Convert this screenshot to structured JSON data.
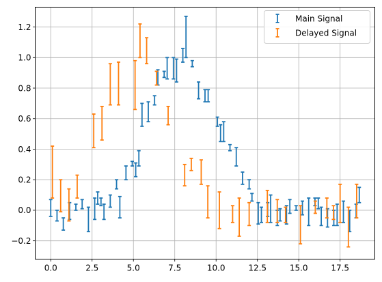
{
  "chart_data": {
    "type": "errorbar",
    "title": "",
    "xlabel": "",
    "ylabel": "",
    "xlim": [
      -0.94,
      19.6
    ],
    "ylim": [
      -0.32,
      1.33
    ],
    "grid": true,
    "legend_position": "top-right",
    "x_ticks": [
      0.0,
      2.5,
      5.0,
      7.5,
      10.0,
      12.5,
      15.0,
      17.5
    ],
    "x_tick_labels": [
      "0.0",
      "2.5",
      "5.0",
      "7.5",
      "10.0",
      "12.5",
      "15.0",
      "17.5"
    ],
    "y_ticks": [
      -0.2,
      0.0,
      0.2,
      0.4,
      0.6,
      0.8,
      1.0,
      1.2
    ],
    "y_tick_labels": [
      "−0.2",
      "0.0",
      "0.2",
      "0.4",
      "0.6",
      "0.8",
      "1.0",
      "1.2"
    ],
    "series": [
      {
        "name": "Main Signal",
        "color": "#1f77b4",
        "points": [
          {
            "x": 0.0,
            "lo": -0.04,
            "hi": 0.07
          },
          {
            "x": 0.38,
            "lo": -0.07,
            "hi": 0.0
          },
          {
            "x": 0.76,
            "lo": -0.13,
            "hi": -0.05
          },
          {
            "x": 1.14,
            "lo": -0.06,
            "hi": 0.05
          },
          {
            "x": 1.52,
            "lo": 0.0,
            "hi": 0.04
          },
          {
            "x": 1.9,
            "lo": 0.01,
            "hi": 0.07
          },
          {
            "x": 2.28,
            "lo": -0.14,
            "hi": 0.02
          },
          {
            "x": 2.66,
            "lo": -0.06,
            "hi": 0.08
          },
          {
            "x": 2.84,
            "lo": 0.04,
            "hi": 0.12
          },
          {
            "x": 3.04,
            "lo": 0.03,
            "hi": 0.08
          },
          {
            "x": 3.22,
            "lo": -0.06,
            "hi": 0.04
          },
          {
            "x": 3.6,
            "lo": 0.02,
            "hi": 0.1
          },
          {
            "x": 3.98,
            "lo": 0.14,
            "hi": 0.2
          },
          {
            "x": 4.18,
            "lo": -0.05,
            "hi": 0.09
          },
          {
            "x": 4.55,
            "lo": 0.2,
            "hi": 0.29
          },
          {
            "x": 4.93,
            "lo": 0.29,
            "hi": 0.32
          },
          {
            "x": 5.14,
            "lo": 0.22,
            "hi": 0.31
          },
          {
            "x": 5.33,
            "lo": 0.29,
            "hi": 0.39
          },
          {
            "x": 5.52,
            "lo": 0.55,
            "hi": 0.7
          },
          {
            "x": 5.9,
            "lo": 0.58,
            "hi": 0.71
          },
          {
            "x": 6.28,
            "lo": 0.69,
            "hi": 0.75
          },
          {
            "x": 6.48,
            "lo": 0.82,
            "hi": 0.92
          },
          {
            "x": 6.86,
            "lo": 0.87,
            "hi": 0.91
          },
          {
            "x": 7.04,
            "lo": 0.86,
            "hi": 1.0
          },
          {
            "x": 7.42,
            "lo": 0.86,
            "hi": 1.0
          },
          {
            "x": 7.61,
            "lo": 0.84,
            "hi": 0.99
          },
          {
            "x": 7.99,
            "lo": 0.97,
            "hi": 1.06
          },
          {
            "x": 8.18,
            "lo": 1.0,
            "hi": 1.27
          },
          {
            "x": 8.56,
            "lo": 0.94,
            "hi": 0.98
          },
          {
            "x": 8.94,
            "lo": 0.73,
            "hi": 0.84
          },
          {
            "x": 9.33,
            "lo": 0.71,
            "hi": 0.79
          },
          {
            "x": 9.52,
            "lo": 0.71,
            "hi": 0.79
          },
          {
            "x": 10.08,
            "lo": 0.55,
            "hi": 0.61
          },
          {
            "x": 10.27,
            "lo": 0.45,
            "hi": 0.56
          },
          {
            "x": 10.46,
            "lo": 0.45,
            "hi": 0.58
          },
          {
            "x": 10.84,
            "lo": 0.39,
            "hi": 0.43
          },
          {
            "x": 11.22,
            "lo": 0.29,
            "hi": 0.41
          },
          {
            "x": 11.6,
            "lo": 0.17,
            "hi": 0.25
          },
          {
            "x": 12.0,
            "lo": 0.14,
            "hi": 0.2
          },
          {
            "x": 12.17,
            "lo": 0.06,
            "hi": 0.11
          },
          {
            "x": 12.55,
            "lo": -0.09,
            "hi": 0.05
          },
          {
            "x": 12.74,
            "lo": -0.08,
            "hi": 0.02
          },
          {
            "x": 13.12,
            "lo": -0.04,
            "hi": 0.05
          },
          {
            "x": 13.3,
            "lo": -0.08,
            "hi": 0.1
          },
          {
            "x": 13.7,
            "lo": -0.1,
            "hi": 0.0
          },
          {
            "x": 13.87,
            "lo": -0.07,
            "hi": 0.01
          },
          {
            "x": 14.26,
            "lo": -0.09,
            "hi": 0.03
          },
          {
            "x": 14.46,
            "lo": -0.02,
            "hi": 0.07
          },
          {
            "x": 14.84,
            "lo": 0.0,
            "hi": 0.03
          },
          {
            "x": 15.22,
            "lo": -0.03,
            "hi": 0.06
          },
          {
            "x": 15.6,
            "lo": -0.1,
            "hi": 0.08
          },
          {
            "x": 15.98,
            "lo": 0.03,
            "hi": 0.08
          },
          {
            "x": 16.18,
            "lo": 0.01,
            "hi": 0.08
          },
          {
            "x": 16.36,
            "lo": -0.1,
            "hi": 0.02
          },
          {
            "x": 16.74,
            "lo": -0.11,
            "hi": 0.01
          },
          {
            "x": 17.12,
            "lo": -0.1,
            "hi": 0.0
          },
          {
            "x": 17.32,
            "lo": -0.1,
            "hi": 0.04
          },
          {
            "x": 17.7,
            "lo": -0.08,
            "hi": 0.06
          },
          {
            "x": 18.08,
            "lo": -0.14,
            "hi": 0.0
          },
          {
            "x": 18.47,
            "lo": -0.05,
            "hi": 0.04
          },
          {
            "x": 18.66,
            "lo": 0.05,
            "hi": 0.15
          }
        ]
      },
      {
        "name": "Delayed Signal",
        "color": "#ff7f0e",
        "points": [
          {
            "x": 0.1,
            "lo": 0.08,
            "hi": 0.42
          },
          {
            "x": 0.6,
            "lo": -0.01,
            "hi": 0.2
          },
          {
            "x": 1.1,
            "lo": -0.07,
            "hi": 0.14
          },
          {
            "x": 1.6,
            "lo": 0.08,
            "hi": 0.23
          },
          {
            "x": 2.6,
            "lo": 0.41,
            "hi": 0.63
          },
          {
            "x": 3.1,
            "lo": 0.46,
            "hi": 0.68
          },
          {
            "x": 3.6,
            "lo": 0.69,
            "hi": 0.96
          },
          {
            "x": 4.1,
            "lo": 0.69,
            "hi": 0.97
          },
          {
            "x": 5.1,
            "lo": 0.66,
            "hi": 0.98
          },
          {
            "x": 5.4,
            "lo": 1.0,
            "hi": 1.22
          },
          {
            "x": 5.8,
            "lo": 0.96,
            "hi": 1.13
          },
          {
            "x": 6.4,
            "lo": 0.82,
            "hi": 0.91
          },
          {
            "x": 7.1,
            "lo": 0.56,
            "hi": 0.68
          },
          {
            "x": 8.1,
            "lo": 0.16,
            "hi": 0.3
          },
          {
            "x": 8.5,
            "lo": 0.26,
            "hi": 0.34
          },
          {
            "x": 9.1,
            "lo": 0.17,
            "hi": 0.33
          },
          {
            "x": 9.5,
            "lo": -0.05,
            "hi": 0.16
          },
          {
            "x": 10.2,
            "lo": -0.12,
            "hi": 0.12
          },
          {
            "x": 11.0,
            "lo": -0.08,
            "hi": 0.03
          },
          {
            "x": 11.4,
            "lo": -0.17,
            "hi": 0.08
          },
          {
            "x": 12.0,
            "lo": -0.1,
            "hi": 0.05
          },
          {
            "x": 13.1,
            "lo": -0.08,
            "hi": 0.13
          },
          {
            "x": 13.7,
            "lo": -0.08,
            "hi": 0.07
          },
          {
            "x": 14.2,
            "lo": -0.08,
            "hi": 0.02
          },
          {
            "x": 15.1,
            "lo": -0.22,
            "hi": 0.03
          },
          {
            "x": 16.0,
            "lo": -0.02,
            "hi": 0.06
          },
          {
            "x": 16.7,
            "lo": -0.05,
            "hi": 0.08
          },
          {
            "x": 17.1,
            "lo": -0.06,
            "hi": 0.03
          },
          {
            "x": 17.5,
            "lo": -0.08,
            "hi": 0.17
          },
          {
            "x": 18.0,
            "lo": -0.24,
            "hi": 0.02
          },
          {
            "x": 18.5,
            "lo": -0.05,
            "hi": 0.17
          }
        ]
      }
    ]
  }
}
